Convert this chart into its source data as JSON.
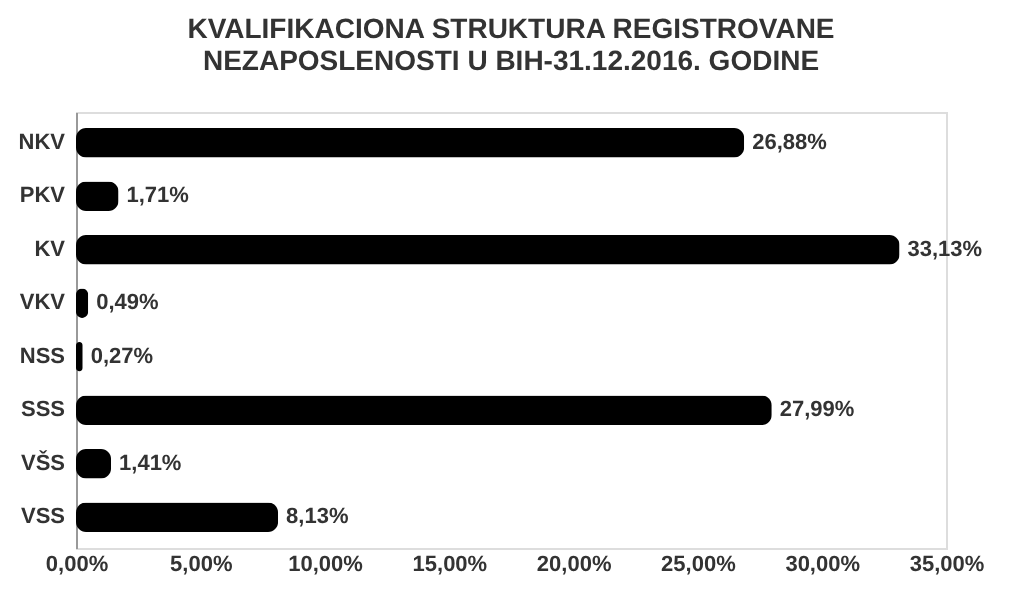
{
  "chart_data": {
    "type": "bar",
    "orientation": "horizontal",
    "title": "KVALIFIKACIONA STRUKTURA REGISTROVANE\nNEZAPOSLENOSTI U BIH-31.12.2016. GODINE",
    "categories": [
      "NKV",
      "PKV",
      "KV",
      "VKV",
      "NSS",
      "SSS",
      "VŠS",
      "VSS"
    ],
    "values": [
      26.88,
      1.71,
      33.13,
      0.49,
      0.27,
      27.99,
      1.41,
      8.13
    ],
    "value_labels": [
      "26,88%",
      "1,71%",
      "33,13%",
      "0,49%",
      "0,27%",
      "27,99%",
      "1,41%",
      "8,13%"
    ],
    "color": "#000000",
    "xlim": [
      0,
      35
    ],
    "xticks": [
      {
        "value": 0,
        "label": "0,00%"
      },
      {
        "value": 5,
        "label": "5,00%"
      },
      {
        "value": 10,
        "label": "10,00%"
      },
      {
        "value": 15,
        "label": "15,00%"
      },
      {
        "value": 20,
        "label": "20,00%"
      },
      {
        "value": 25,
        "label": "25,00%"
      },
      {
        "value": 30,
        "label": "30,00%"
      },
      {
        "value": 35,
        "label": "35,00%"
      }
    ],
    "grid": false
  }
}
